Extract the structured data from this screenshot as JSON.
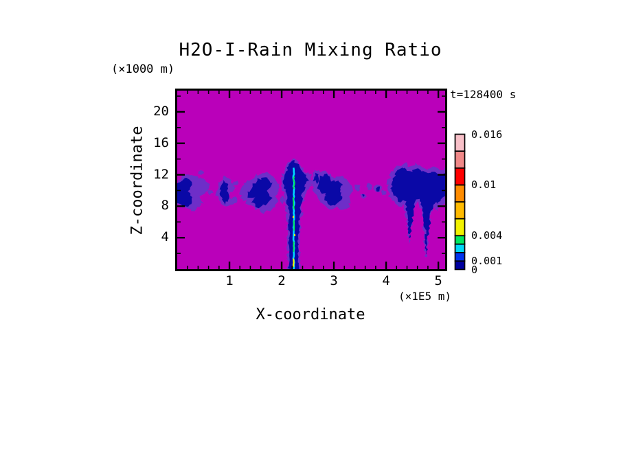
{
  "page": {
    "background": "#ffffff"
  },
  "chart_data": {
    "type": "heatmap",
    "title": "H2O-I-Rain Mixing Ratio",
    "time_annotation": "t=128400 s",
    "xlabel": "X-coordinate",
    "ylabel": "Z-coordinate",
    "x_unit": "(×1E5 m)",
    "y_unit": "(×1000 m)",
    "xlim": [
      0,
      5.13
    ],
    "ylim": [
      0,
      22.7
    ],
    "x_ticks": [
      1,
      2,
      3,
      4,
      5
    ],
    "x_minor_step": 0.2,
    "y_ticks": [
      4,
      8,
      12,
      16,
      20
    ],
    "y_minor_step": 2,
    "grid": false,
    "colors": {
      "background_fill": "#BA00BA",
      "fringe": "#6E2EC8",
      "core": "#0A08A6",
      "frame": "#000000"
    },
    "colorbar": {
      "min": 0,
      "max": 0.016,
      "levels": [
        0,
        0.001,
        0.002,
        0.003,
        0.004,
        0.006,
        0.008,
        0.01,
        0.012,
        0.014,
        0.016
      ],
      "colors": [
        "#0000A0",
        "#0033EE",
        "#00D8F8",
        "#00E860",
        "#F2F200",
        "#FFBB00",
        "#FF8C00",
        "#FF0000",
        "#F08888",
        "#F8C0C8"
      ],
      "labels": [
        {
          "value": 0.016,
          "text": "0.016"
        },
        {
          "value": 0.01,
          "text": "0.01"
        },
        {
          "value": 0.004,
          "text": "0.004"
        },
        {
          "value": 0.001,
          "text": "0.001"
        },
        {
          "value": 0,
          "text": "0"
        }
      ]
    },
    "features": [
      {
        "name": "band-patch-left-edge",
        "fringe": [
          [
            -0.06,
            10.4
          ],
          [
            0.1,
            11.8
          ],
          [
            0.3,
            12.0
          ],
          [
            0.5,
            11.3
          ],
          [
            0.63,
            10.6
          ],
          [
            0.58,
            9.9
          ],
          [
            0.42,
            9.3
          ],
          [
            0.5,
            8.4
          ],
          [
            0.32,
            7.5
          ],
          [
            0.1,
            7.9
          ],
          [
            -0.06,
            8.6
          ]
        ],
        "core": [
          [
            -0.06,
            10.3
          ],
          [
            0.08,
            11.4
          ],
          [
            0.2,
            11.6
          ],
          [
            0.28,
            10.7
          ],
          [
            0.22,
            9.8
          ],
          [
            0.3,
            8.8
          ],
          [
            0.2,
            7.9
          ],
          [
            0.04,
            8.3
          ],
          [
            -0.06,
            9.1
          ]
        ]
      },
      {
        "name": "band-patch-a",
        "fringe": [
          [
            0.74,
            10.0
          ],
          [
            0.8,
            11.2
          ],
          [
            0.92,
            11.9
          ],
          [
            1.04,
            11.3
          ],
          [
            1.08,
            10.2
          ],
          [
            1.0,
            9.4
          ],
          [
            1.06,
            8.5
          ],
          [
            0.94,
            7.8
          ],
          [
            0.82,
            8.6
          ],
          [
            0.76,
            9.3
          ]
        ],
        "core": [
          [
            0.83,
            10.3
          ],
          [
            0.9,
            11.2
          ],
          [
            0.99,
            10.8
          ],
          [
            0.95,
            9.9
          ],
          [
            1.0,
            8.9
          ],
          [
            0.9,
            8.2
          ],
          [
            0.84,
            9.2
          ]
        ]
      },
      {
        "name": "band-patch-b",
        "fringe": [
          [
            1.2,
            9.7
          ],
          [
            1.27,
            10.6
          ],
          [
            1.38,
            11.3
          ],
          [
            1.52,
            12.0
          ],
          [
            1.68,
            12.3
          ],
          [
            1.83,
            11.8
          ],
          [
            1.93,
            11.0
          ],
          [
            1.97,
            10.1
          ],
          [
            1.88,
            9.4
          ],
          [
            1.93,
            8.6
          ],
          [
            1.82,
            7.7
          ],
          [
            1.66,
            7.2
          ],
          [
            1.5,
            7.7
          ],
          [
            1.36,
            8.3
          ],
          [
            1.25,
            8.9
          ]
        ],
        "core": [
          [
            1.34,
            9.5
          ],
          [
            1.42,
            10.6
          ],
          [
            1.55,
            11.4
          ],
          [
            1.7,
            11.6
          ],
          [
            1.8,
            10.9
          ],
          [
            1.72,
            10.1
          ],
          [
            1.8,
            9.2
          ],
          [
            1.7,
            8.2
          ],
          [
            1.55,
            7.8
          ],
          [
            1.44,
            8.6
          ],
          [
            1.52,
            9.4
          ],
          [
            1.4,
            9.0
          ]
        ]
      },
      {
        "name": "convective-column",
        "fringe": [
          [
            1.97,
            11.0
          ],
          [
            2.02,
            12.2
          ],
          [
            2.1,
            13.3
          ],
          [
            2.2,
            14.1
          ],
          [
            2.3,
            13.8
          ],
          [
            2.38,
            13.0
          ],
          [
            2.47,
            12.4
          ],
          [
            2.56,
            11.8
          ],
          [
            2.6,
            11.0
          ],
          [
            2.52,
            10.3
          ],
          [
            2.45,
            9.5
          ],
          [
            2.4,
            8.2
          ],
          [
            2.37,
            6.0
          ],
          [
            2.35,
            3.0
          ],
          [
            2.34,
            -0.3
          ],
          [
            2.12,
            -0.3
          ],
          [
            2.12,
            3.0
          ],
          [
            2.1,
            6.5
          ],
          [
            2.07,
            9.0
          ],
          [
            2.02,
            10.2
          ]
        ],
        "core": [
          [
            2.02,
            10.9
          ],
          [
            2.07,
            12.1
          ],
          [
            2.13,
            13.2
          ],
          [
            2.21,
            13.9
          ],
          [
            2.29,
            13.5
          ],
          [
            2.36,
            12.7
          ],
          [
            2.44,
            12.1
          ],
          [
            2.5,
            11.4
          ],
          [
            2.45,
            10.5
          ],
          [
            2.4,
            9.6
          ],
          [
            2.36,
            8.0
          ],
          [
            2.33,
            5.0
          ],
          [
            2.32,
            -0.3
          ],
          [
            2.14,
            -0.3
          ],
          [
            2.14,
            4.0
          ],
          [
            2.13,
            7.5
          ],
          [
            2.09,
            9.8
          ]
        ]
      },
      {
        "name": "anvil-lobe",
        "fringe": [
          [
            2.56,
            11.2
          ],
          [
            2.6,
            12.4
          ],
          [
            2.68,
            12.8
          ],
          [
            2.76,
            12.2
          ],
          [
            2.78,
            11.2
          ],
          [
            2.72,
            10.4
          ],
          [
            2.62,
            10.6
          ]
        ],
        "core": [
          [
            2.61,
            11.3
          ],
          [
            2.65,
            12.2
          ],
          [
            2.71,
            11.9
          ],
          [
            2.69,
            10.9
          ]
        ]
      },
      {
        "name": "band-patch-c",
        "fringe": [
          [
            2.6,
            10.8
          ],
          [
            2.66,
            12.0
          ],
          [
            2.78,
            12.6
          ],
          [
            2.92,
            12.2
          ],
          [
            3.0,
            11.4
          ],
          [
            3.1,
            11.8
          ],
          [
            3.22,
            11.4
          ],
          [
            3.32,
            10.8
          ],
          [
            3.38,
            9.9
          ],
          [
            3.3,
            9.1
          ],
          [
            3.34,
            8.3
          ],
          [
            3.22,
            7.6
          ],
          [
            3.08,
            7.9
          ],
          [
            2.96,
            7.5
          ],
          [
            2.84,
            8.0
          ],
          [
            2.72,
            8.7
          ],
          [
            2.62,
            9.6
          ]
        ],
        "core": [
          [
            2.68,
            10.6
          ],
          [
            2.74,
            11.8
          ],
          [
            2.86,
            12.0
          ],
          [
            2.96,
            11.2
          ],
          [
            3.06,
            11.3
          ],
          [
            3.16,
            10.8
          ],
          [
            3.1,
            9.9
          ],
          [
            3.18,
            9.0
          ],
          [
            3.08,
            8.3
          ],
          [
            2.94,
            8.1
          ],
          [
            2.82,
            8.9
          ],
          [
            2.86,
            9.8
          ],
          [
            2.74,
            9.5
          ]
        ]
      },
      {
        "name": "virga-cluster-right",
        "fringe": [
          [
            4.0,
            10.2
          ],
          [
            4.05,
            11.4
          ],
          [
            4.12,
            12.4
          ],
          [
            4.22,
            13.1
          ],
          [
            4.34,
            13.5
          ],
          [
            4.46,
            13.0
          ],
          [
            4.56,
            13.4
          ],
          [
            4.68,
            13.1
          ],
          [
            4.8,
            12.7
          ],
          [
            4.92,
            13.0
          ],
          [
            5.04,
            12.6
          ],
          [
            5.2,
            12.8
          ],
          [
            5.2,
            8.8
          ],
          [
            5.06,
            8.2
          ],
          [
            5.0,
            7.4
          ],
          [
            4.93,
            8.0
          ],
          [
            4.86,
            7.0
          ],
          [
            4.8,
            4.4
          ],
          [
            4.76,
            1.6
          ],
          [
            4.72,
            5.0
          ],
          [
            4.69,
            7.4
          ],
          [
            4.62,
            8.5
          ],
          [
            4.54,
            7.9
          ],
          [
            4.48,
            5.8
          ],
          [
            4.43,
            3.4
          ],
          [
            4.39,
            6.6
          ],
          [
            4.34,
            8.3
          ],
          [
            4.24,
            8.0
          ],
          [
            4.16,
            8.7
          ],
          [
            4.06,
            9.2
          ]
        ],
        "core": [
          [
            4.1,
            10.4
          ],
          [
            4.14,
            11.6
          ],
          [
            4.22,
            12.5
          ],
          [
            4.33,
            12.9
          ],
          [
            4.45,
            12.4
          ],
          [
            4.56,
            12.8
          ],
          [
            4.68,
            12.5
          ],
          [
            4.8,
            12.2
          ],
          [
            4.92,
            12.4
          ],
          [
            5.04,
            12.0
          ],
          [
            5.2,
            12.2
          ],
          [
            5.2,
            9.6
          ],
          [
            5.05,
            9.0
          ],
          [
            4.99,
            8.2
          ],
          [
            4.92,
            8.6
          ],
          [
            4.86,
            7.2
          ],
          [
            4.81,
            4.6
          ],
          [
            4.77,
            1.9
          ],
          [
            4.74,
            5.4
          ],
          [
            4.7,
            7.8
          ],
          [
            4.62,
            9.0
          ],
          [
            4.55,
            8.4
          ],
          [
            4.5,
            6.2
          ],
          [
            4.45,
            3.8
          ],
          [
            4.41,
            7.0
          ],
          [
            4.36,
            8.8
          ],
          [
            4.26,
            8.5
          ],
          [
            4.18,
            9.3
          ],
          [
            4.12,
            9.9
          ]
        ]
      }
    ],
    "specks": [
      {
        "x": 0.55,
        "z": 10.6,
        "rx": 0.06,
        "rz": 0.35,
        "layer": "fringe"
      },
      {
        "x": 0.63,
        "z": 9.8,
        "rx": 0.05,
        "rz": 0.3,
        "layer": "fringe"
      },
      {
        "x": 0.45,
        "z": 12.3,
        "rx": 0.05,
        "rz": 0.3,
        "layer": "fringe"
      },
      {
        "x": 1.1,
        "z": 8.8,
        "rx": 0.05,
        "rz": 0.4,
        "layer": "fringe"
      },
      {
        "x": 1.12,
        "z": 10.9,
        "rx": 0.05,
        "rz": 0.3,
        "layer": "fringe"
      },
      {
        "x": 2.02,
        "z": 8.8,
        "rx": 0.04,
        "rz": 0.5,
        "layer": "fringe"
      },
      {
        "x": 3.45,
        "z": 10.4,
        "rx": 0.06,
        "rz": 0.45,
        "layer": "fringe"
      },
      {
        "x": 3.56,
        "z": 9.3,
        "rx": 0.05,
        "rz": 0.35,
        "layer": "fringe"
      },
      {
        "x": 3.68,
        "z": 10.5,
        "rx": 0.06,
        "rz": 0.4,
        "layer": "fringe"
      },
      {
        "x": 3.84,
        "z": 10.3,
        "rx": 0.07,
        "rz": 0.5,
        "layer": "fringe"
      },
      {
        "x": 3.95,
        "z": 9.7,
        "rx": 0.05,
        "rz": 0.35,
        "layer": "fringe"
      },
      {
        "x": 3.85,
        "z": 10.2,
        "rx": 0.03,
        "rz": 0.3,
        "layer": "core"
      },
      {
        "x": 3.56,
        "z": 9.4,
        "rx": 0.02,
        "rz": 0.2,
        "layer": "core"
      }
    ],
    "streaks": [
      {
        "x": 2.232,
        "z0": -0.2,
        "z1": 12.9,
        "color": "#00D8FF",
        "width": 2.6,
        "amp": 0.8,
        "seed": 11
      },
      {
        "x": 2.238,
        "z0": 10.2,
        "z1": 11.8,
        "color": "#00E85C",
        "width": 1.8,
        "amp": 0.9,
        "seed": 12
      },
      {
        "x": 2.236,
        "z0": 7.6,
        "z1": 9.4,
        "color": "#00E85C",
        "width": 1.8,
        "amp": 0.9,
        "seed": 13
      },
      {
        "x": 2.24,
        "z0": 4.9,
        "z1": 6.4,
        "color": "#00E85C",
        "width": 1.8,
        "amp": 0.9,
        "seed": 14
      },
      {
        "x": 2.235,
        "z0": 2.2,
        "z1": 3.6,
        "color": "#00E85C",
        "width": 1.8,
        "amp": 0.9,
        "seed": 15
      },
      {
        "x": 2.228,
        "z0": 0.3,
        "z1": 1.5,
        "color": "#F2F200",
        "width": 2.2,
        "amp": 0.5,
        "seed": 16
      },
      {
        "x": 2.25,
        "z0": 4.2,
        "z1": 4.7,
        "color": "#F2F200",
        "width": 2.0,
        "amp": 0.4,
        "seed": 17
      },
      {
        "x": 2.222,
        "z0": 6.5,
        "z1": 6.9,
        "color": "#F2F200",
        "width": 2.0,
        "amp": 0.4,
        "seed": 18
      }
    ]
  }
}
